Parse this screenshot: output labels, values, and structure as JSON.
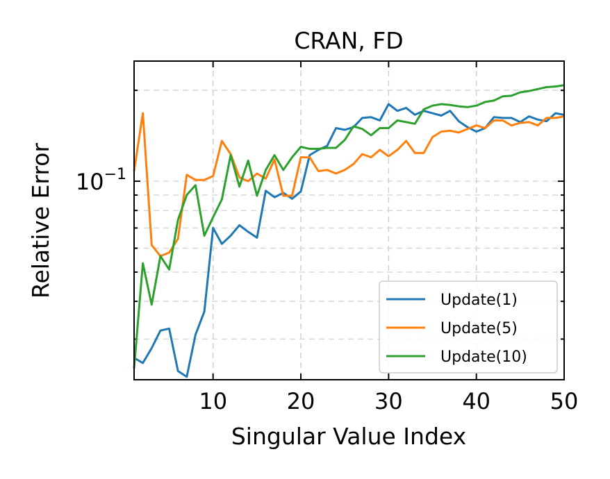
{
  "chart_data": {
    "type": "line",
    "title": "CRAN, FD",
    "xlabel": "Singular Value Index",
    "ylabel": "Relative Error",
    "x_scale": "linear",
    "y_scale": "log",
    "xlim": [
      1,
      50
    ],
    "ylim": [
      0.022,
      0.25
    ],
    "x_ticks": [
      10,
      20,
      30,
      40,
      50
    ],
    "y_major_tick": {
      "value": 0.1,
      "base": "10",
      "exponent": "−1"
    },
    "grid": true,
    "legend_position": "lower-right",
    "x": [
      1,
      2,
      3,
      4,
      5,
      6,
      7,
      8,
      9,
      10,
      11,
      12,
      13,
      14,
      15,
      16,
      17,
      18,
      19,
      20,
      21,
      22,
      23,
      24,
      25,
      26,
      27,
      28,
      29,
      30,
      31,
      32,
      33,
      34,
      35,
      36,
      37,
      38,
      39,
      40,
      41,
      42,
      43,
      44,
      45,
      46,
      47,
      48,
      49,
      50
    ],
    "series": [
      {
        "name": "Update(1)",
        "color": "#1f77b4",
        "values": [
          0.026,
          0.025,
          0.028,
          0.032,
          0.0325,
          0.0235,
          0.0225,
          0.031,
          0.037,
          0.07,
          0.062,
          0.066,
          0.0715,
          0.068,
          0.065,
          0.093,
          0.0885,
          0.0915,
          0.0875,
          0.0925,
          0.122,
          0.127,
          0.131,
          0.15,
          0.148,
          0.151,
          0.162,
          0.163,
          0.159,
          0.18,
          0.171,
          0.175,
          0.166,
          0.171,
          0.168,
          0.165,
          0.171,
          0.158,
          0.151,
          0.146,
          0.15,
          0.163,
          0.162,
          0.162,
          0.157,
          0.164,
          0.16,
          0.158,
          0.168,
          0.166
        ]
      },
      {
        "name": "Update(5)",
        "color": "#ff7f0e",
        "values": [
          0.108,
          0.168,
          0.0615,
          0.0565,
          0.058,
          0.0645,
          0.105,
          0.101,
          0.101,
          0.104,
          0.136,
          0.123,
          0.103,
          0.1,
          0.106,
          0.102,
          0.118,
          0.0895,
          0.0895,
          0.12,
          0.12,
          0.108,
          0.109,
          0.106,
          0.109,
          0.114,
          0.123,
          0.12,
          0.127,
          0.121,
          0.127,
          0.136,
          0.124,
          0.124,
          0.14,
          0.146,
          0.147,
          0.145,
          0.149,
          0.153,
          0.15,
          0.159,
          0.159,
          0.153,
          0.156,
          0.157,
          0.153,
          0.162,
          0.162,
          0.164
        ]
      },
      {
        "name": "Update(10)",
        "color": "#2ca02c",
        "values": [
          0.024,
          0.0535,
          0.039,
          0.0565,
          0.051,
          0.0745,
          0.09,
          0.097,
          0.066,
          0.076,
          0.087,
          0.122,
          0.096,
          0.117,
          0.0895,
          0.109,
          0.122,
          0.109,
          0.12,
          0.13,
          0.128,
          0.128,
          0.129,
          0.129,
          0.137,
          0.152,
          0.149,
          0.142,
          0.15,
          0.15,
          0.159,
          0.157,
          0.155,
          0.173,
          0.178,
          0.18,
          0.179,
          0.177,
          0.176,
          0.178,
          0.183,
          0.185,
          0.191,
          0.192,
          0.197,
          0.199,
          0.202,
          0.205,
          0.206,
          0.208
        ]
      }
    ]
  }
}
